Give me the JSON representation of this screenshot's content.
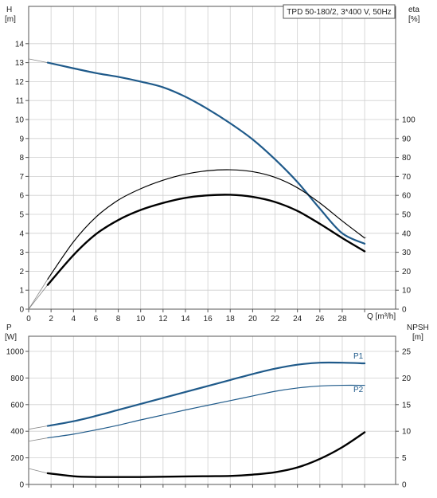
{
  "chart_data": [
    {
      "type": "line",
      "title": "TPD 50-180/2, 3*400 V, 50Hz",
      "xlabel": "Q [m³/h]",
      "ylabel_left": [
        "H",
        "[m]"
      ],
      "ylabel_right": [
        "eta",
        "[%]"
      ],
      "xlim": [
        0,
        30
      ],
      "ylim_left": [
        0,
        15
      ],
      "ylim_right": [
        0,
        150
      ],
      "xticks": [
        "0",
        "2",
        "4",
        "6",
        "8",
        "10",
        "12",
        "14",
        "16",
        "18",
        "20",
        "22",
        "24",
        "26",
        "28"
      ],
      "yticks_left": [
        "0",
        "1",
        "2",
        "3",
        "4",
        "5",
        "6",
        "7",
        "8",
        "9",
        "10",
        "11",
        "12",
        "13",
        "14"
      ],
      "yticks_right": [
        "0",
        "10",
        "20",
        "30",
        "40",
        "50",
        "60",
        "70",
        "80",
        "90",
        "100"
      ],
      "grid": true,
      "series": [
        {
          "axis": "left",
          "color": "#1f5a8a",
          "width": 2.2,
          "x": [
            1.7,
            4,
            6,
            8,
            10,
            12,
            14,
            16,
            18,
            20,
            22,
            24,
            26,
            28,
            30
          ],
          "y": [
            13.0,
            12.7,
            12.45,
            12.25,
            12.0,
            11.7,
            11.2,
            10.55,
            9.8,
            8.95,
            7.9,
            6.7,
            5.3,
            4.0,
            3.45
          ]
        },
        {
          "axis": "right",
          "color": "#000000",
          "width": 1.2,
          "x": [
            1.7,
            4,
            6,
            8,
            10,
            12,
            14,
            16,
            18,
            20,
            22,
            24,
            26,
            28,
            30
          ],
          "y": [
            15.8,
            35.5,
            48.5,
            57.5,
            63.5,
            68,
            71.2,
            73,
            73.5,
            72.5,
            69.5,
            64,
            56,
            46.5,
            37.5
          ]
        },
        {
          "axis": "right",
          "color": "#000000",
          "width": 2.4,
          "x": [
            1.7,
            4,
            6,
            8,
            10,
            12,
            14,
            16,
            18,
            20,
            22,
            24,
            26,
            28,
            30
          ],
          "y": [
            12.8,
            28.5,
            39.5,
            47,
            52.3,
            56,
            58.7,
            60,
            60.3,
            59.2,
            56.5,
            51.8,
            45,
            37.5,
            30.5
          ]
        }
      ],
      "extrapolated": [
        {
          "axis": "left",
          "x": [
            0,
            1.7
          ],
          "y": [
            13.2,
            13.0
          ]
        },
        {
          "axis": "right",
          "x": [
            0,
            1.7
          ],
          "y": [
            0,
            15.8
          ]
        },
        {
          "axis": "right",
          "x": [
            0,
            1.7
          ],
          "y": [
            0,
            12.8
          ]
        },
        {
          "axis": "right",
          "x": [
            30,
            30.15
          ],
          "y": [
            37.5,
            38
          ]
        }
      ]
    },
    {
      "type": "line",
      "xlabel": "",
      "ylabel_left": [
        "P",
        "[W]"
      ],
      "ylabel_right": [
        "NPSH",
        "[m]"
      ],
      "xlim": [
        0,
        30
      ],
      "ylim_left": [
        0,
        1000
      ],
      "ylim_right": [
        0,
        25
      ],
      "yticks_left": [
        "0",
        "200",
        "400",
        "600",
        "800",
        "1000"
      ],
      "yticks_right": [
        "0",
        "5",
        "10",
        "15",
        "20",
        "25"
      ],
      "grid": true,
      "series": [
        {
          "name": "P1",
          "axis": "left",
          "color": "#1f5a8a",
          "width": 2.2,
          "x": [
            1.7,
            4,
            6,
            8,
            10,
            12,
            14,
            16,
            18,
            20,
            22,
            24,
            26,
            28,
            30
          ],
          "y": [
            440,
            475,
            515,
            560,
            605,
            650,
            695,
            740,
            785,
            830,
            870,
            900,
            915,
            915,
            910
          ]
        },
        {
          "name": "P2",
          "axis": "left",
          "color": "#1f5a8a",
          "width": 1.2,
          "x": [
            1.7,
            4,
            6,
            8,
            10,
            12,
            14,
            16,
            18,
            20,
            22,
            24,
            26,
            28,
            30
          ],
          "y": [
            350,
            378,
            410,
            445,
            485,
            522,
            560,
            595,
            630,
            665,
            700,
            725,
            740,
            745,
            745
          ]
        },
        {
          "axis": "right",
          "color": "#000000",
          "width": 2.4,
          "x": [
            1.7,
            4,
            6,
            8,
            10,
            12,
            14,
            16,
            18,
            20,
            22,
            24,
            26,
            28,
            30
          ],
          "y": [
            2.1,
            1.55,
            1.4,
            1.4,
            1.4,
            1.45,
            1.5,
            1.55,
            1.6,
            1.85,
            2.3,
            3.2,
            4.8,
            7.0,
            9.8
          ]
        }
      ],
      "extrapolated": [
        {
          "axis": "left",
          "x": [
            0,
            1.7
          ],
          "y": [
            415,
            440
          ]
        },
        {
          "axis": "left",
          "x": [
            0,
            1.7
          ],
          "y": [
            325,
            350
          ]
        },
        {
          "axis": "right",
          "x": [
            0,
            1.7
          ],
          "y": [
            3.0,
            2.1
          ]
        }
      ]
    }
  ]
}
